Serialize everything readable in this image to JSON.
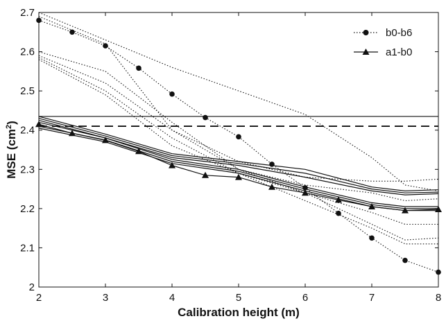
{
  "chart_data": {
    "type": "line",
    "xlabel": "Calibration height (m)",
    "ylabel_main": "MSE (cm",
    "ylabel_sup": "2",
    "ylabel_close": ")",
    "xlim": [
      2,
      8
    ],
    "ylim": [
      2.0,
      2.7
    ],
    "x_ticks": [
      "2",
      "3",
      "4",
      "5",
      "6",
      "7",
      "8"
    ],
    "y_ticks": [
      "2",
      "2.1",
      "2.2",
      "2.3",
      "2.4",
      "2.5",
      "2.6",
      "2.7"
    ],
    "legend": [
      {
        "label": "b0-b6",
        "style": "dotted",
        "marker": "circle"
      },
      {
        "label": "a1-b0",
        "style": "solid",
        "marker": "triangle"
      }
    ],
    "reference_lines": [
      {
        "style": "solid",
        "y": 2.435
      },
      {
        "style": "dashed",
        "y": 2.41
      }
    ],
    "series": [
      {
        "style": "dotted",
        "marker": "circle",
        "x": [
          2,
          2.5,
          3,
          3.5,
          4,
          4.5,
          5,
          5.5,
          6,
          6.5,
          7,
          7.5,
          8
        ],
        "y": [
          2.68,
          2.65,
          2.615,
          2.558,
          2.492,
          2.432,
          2.383,
          2.313,
          2.253,
          2.188,
          2.125,
          2.068,
          2.038
        ]
      },
      {
        "style": "dotted",
        "x": [
          2,
          3,
          4,
          5,
          6,
          7,
          7.5,
          8
        ],
        "y": [
          2.7,
          2.63,
          2.56,
          2.5,
          2.44,
          2.33,
          2.26,
          2.245
        ]
      },
      {
        "style": "dotted",
        "x": [
          2,
          3,
          4,
          5,
          6,
          7,
          7.5,
          8
        ],
        "y": [
          2.69,
          2.62,
          2.4,
          2.32,
          2.28,
          2.27,
          2.27,
          2.275
        ]
      },
      {
        "style": "dotted",
        "x": [
          2,
          3,
          4,
          5,
          6,
          7,
          7.5,
          8
        ],
        "y": [
          2.6,
          2.55,
          2.42,
          2.3,
          2.26,
          2.24,
          2.22,
          2.225
        ]
      },
      {
        "style": "dotted",
        "x": [
          2,
          3,
          4,
          5,
          6,
          7,
          7.5,
          8
        ],
        "y": [
          2.59,
          2.52,
          2.4,
          2.3,
          2.24,
          2.19,
          2.16,
          2.16
        ]
      },
      {
        "style": "dotted",
        "x": [
          2,
          3,
          4,
          5,
          6,
          7,
          7.5,
          8
        ],
        "y": [
          2.585,
          2.5,
          2.38,
          2.29,
          2.24,
          2.16,
          2.12,
          2.125
        ]
      },
      {
        "style": "dotted",
        "x": [
          2,
          3,
          4,
          5,
          6,
          7,
          7.5,
          8
        ],
        "y": [
          2.58,
          2.49,
          2.36,
          2.29,
          2.22,
          2.15,
          2.11,
          2.11
        ]
      },
      {
        "style": "solid",
        "marker": "triangle",
        "x": [
          2,
          2.5,
          3,
          3.5,
          4,
          4.5,
          5,
          5.5,
          6,
          6.5,
          7,
          7.5,
          8
        ],
        "y": [
          2.415,
          2.392,
          2.374,
          2.346,
          2.31,
          2.285,
          2.28,
          2.255,
          2.24,
          2.222,
          2.205,
          2.195,
          2.198
        ]
      },
      {
        "style": "solid",
        "x": [
          2,
          3,
          4,
          5,
          6,
          7,
          7.5,
          8
        ],
        "y": [
          2.435,
          2.39,
          2.34,
          2.32,
          2.3,
          2.255,
          2.245,
          2.248
        ]
      },
      {
        "style": "solid",
        "x": [
          2,
          3,
          4,
          5,
          6,
          7,
          7.5,
          8
        ],
        "y": [
          2.43,
          2.385,
          2.335,
          2.315,
          2.29,
          2.25,
          2.24,
          2.242
        ]
      },
      {
        "style": "solid",
        "x": [
          2,
          3,
          4,
          5,
          6,
          7,
          7.5,
          8
        ],
        "y": [
          2.425,
          2.38,
          2.33,
          2.31,
          2.28,
          2.245,
          2.235,
          2.238
        ]
      },
      {
        "style": "solid",
        "x": [
          2,
          3,
          4,
          5,
          6,
          7,
          7.5,
          8
        ],
        "y": [
          2.42,
          2.38,
          2.325,
          2.3,
          2.255,
          2.215,
          2.205,
          2.205
        ]
      },
      {
        "style": "solid",
        "x": [
          2,
          3,
          4,
          5,
          6,
          7,
          7.5,
          8
        ],
        "y": [
          2.41,
          2.375,
          2.32,
          2.295,
          2.25,
          2.21,
          2.2,
          2.2
        ]
      },
      {
        "style": "solid",
        "x": [
          2,
          3,
          4,
          5,
          6,
          7,
          7.5,
          8
        ],
        "y": [
          2.405,
          2.37,
          2.315,
          2.29,
          2.245,
          2.205,
          2.195,
          2.195
        ]
      }
    ]
  }
}
